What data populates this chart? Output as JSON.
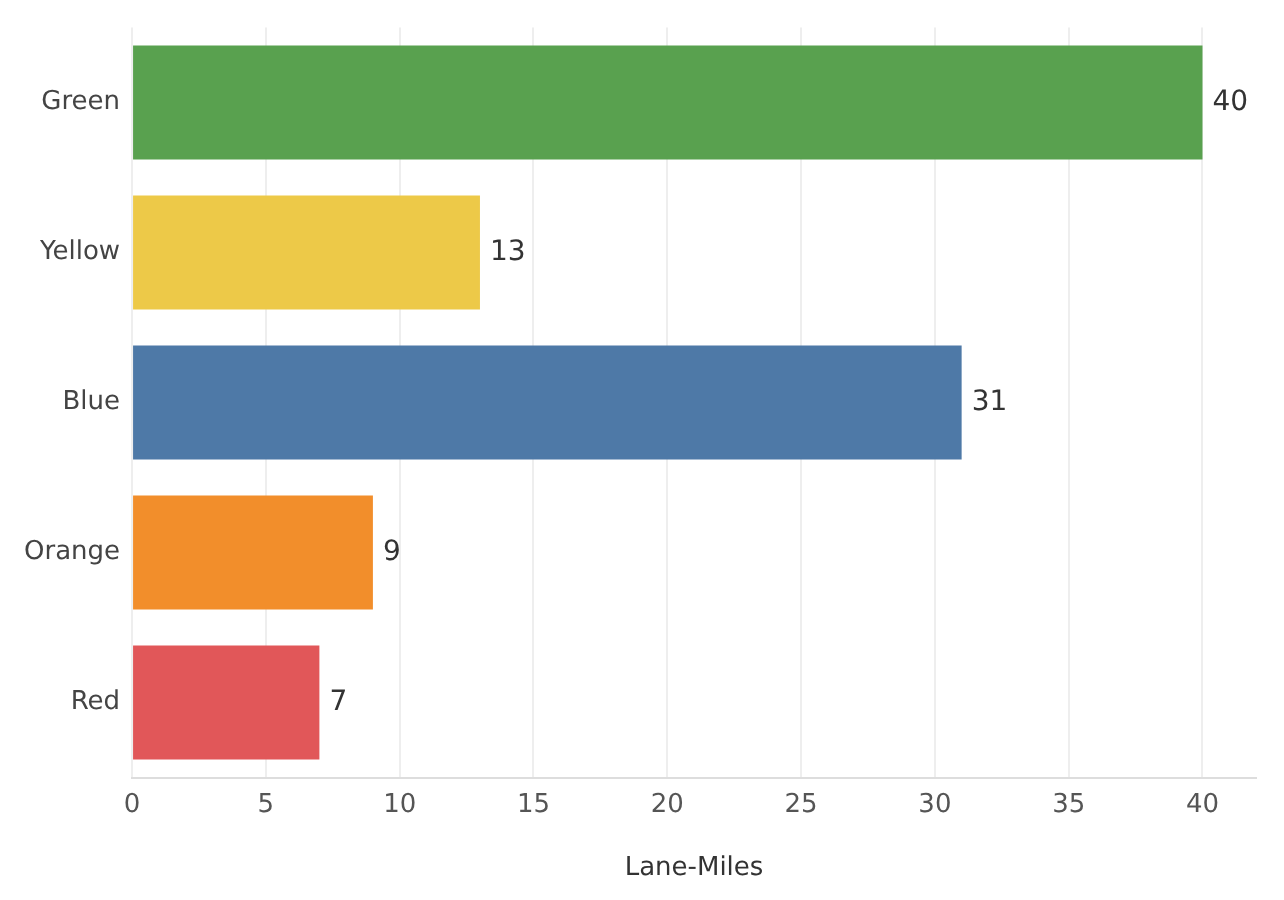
{
  "chart_data": {
    "type": "bar",
    "orientation": "horizontal",
    "xlabel": "Lane-Miles",
    "categories": [
      "Green",
      "Yellow",
      "Blue",
      "Orange",
      "Red"
    ],
    "values": [
      40,
      13,
      31,
      9,
      7
    ],
    "data_labels": true,
    "colors": [
      "#59a14f",
      "#edc948",
      "#4e79a7",
      "#f28e2b",
      "#e15759"
    ],
    "xlim": [
      0,
      42
    ],
    "xticks": [
      0,
      5,
      10,
      15,
      20,
      25,
      30,
      35,
      40
    ],
    "grid": "x",
    "legend": false
  }
}
